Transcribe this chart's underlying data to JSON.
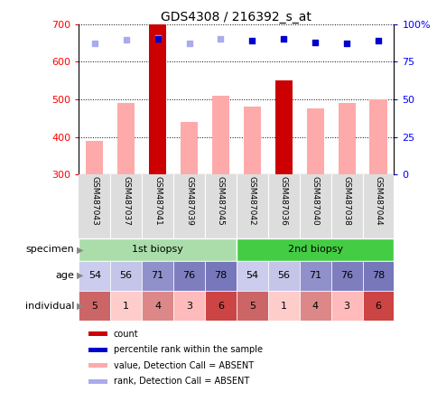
{
  "title": "GDS4308 / 216392_s_at",
  "samples": [
    "GSM487043",
    "GSM487037",
    "GSM487041",
    "GSM487039",
    "GSM487045",
    "GSM487042",
    "GSM487036",
    "GSM487040",
    "GSM487038",
    "GSM487044"
  ],
  "bar_values": [
    null,
    null,
    700,
    null,
    null,
    null,
    550,
    null,
    null,
    null
  ],
  "bar_values_absent": [
    390,
    490,
    null,
    440,
    510,
    480,
    null,
    475,
    490,
    500
  ],
  "percentile_present": [
    null,
    null,
    660,
    null,
    null,
    655,
    660,
    650,
    648,
    655
  ],
  "percentile_absent": [
    648,
    658,
    663,
    648,
    660,
    null,
    null,
    null,
    null,
    null
  ],
  "ylim": [
    300,
    700
  ],
  "y_ticks": [
    300,
    400,
    500,
    600,
    700
  ],
  "right_yticks": [
    0,
    25,
    50,
    75,
    100
  ],
  "bar_color_present": "#cc0000",
  "bar_color_absent": "#ffaaaa",
  "dot_color_present": "#0000cc",
  "dot_color_absent": "#aaaaee",
  "specimen_labels": [
    "1st biopsy",
    "2nd biopsy"
  ],
  "specimen_spans": [
    [
      0,
      4
    ],
    [
      5,
      9
    ]
  ],
  "specimen_colors": [
    "#aaddaa",
    "#44cc44"
  ],
  "age_values": [
    54,
    56,
    71,
    76,
    78,
    54,
    56,
    71,
    76,
    78
  ],
  "individual_values": [
    5,
    1,
    4,
    3,
    6,
    5,
    1,
    4,
    3,
    6
  ],
  "ind_color_map": {
    "1": "#ffcccc",
    "3": "#ffbbbb",
    "4": "#dd8888",
    "5": "#cc6666",
    "6": "#cc4444"
  },
  "legend_items": [
    {
      "label": "count",
      "color": "#cc0000"
    },
    {
      "label": "percentile rank within the sample",
      "color": "#0000cc"
    },
    {
      "label": "value, Detection Call = ABSENT",
      "color": "#ffaaaa"
    },
    {
      "label": "rank, Detection Call = ABSENT",
      "color": "#aaaaee"
    }
  ],
  "bg_color": "white",
  "label_area_color": "#dddddd"
}
